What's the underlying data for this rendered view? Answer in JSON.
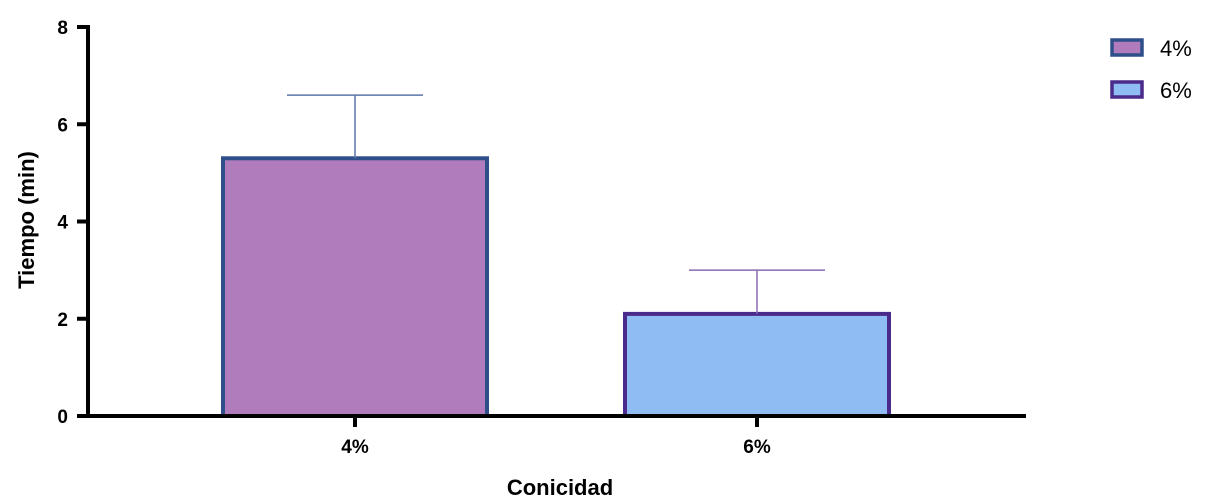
{
  "chart_data": {
    "type": "bar",
    "categories": [
      "4%",
      "6%"
    ],
    "values": [
      5.3,
      2.1
    ],
    "error_upper": [
      6.6,
      3.0
    ],
    "xlabel": "Conicidad",
    "ylabel": "Tiempo (min)",
    "ylim": [
      0,
      8
    ],
    "yticks": [
      "0",
      "2",
      "4",
      "6",
      "8"
    ],
    "grid": false,
    "legend_position": "top-right",
    "legend": [
      {
        "label": "4%",
        "fill": "#b07cbc",
        "stroke": "#2e4f8a"
      },
      {
        "label": "6%",
        "fill": "#8fbdf3",
        "stroke": "#4a2a8a"
      }
    ],
    "bar_fills": [
      "#b07cbc",
      "#8fbdf3"
    ],
    "bar_strokes": [
      "#2e4f8a",
      "#4a2a8a"
    ],
    "error_colors": [
      "#5b76a8",
      "#8a6ab0"
    ],
    "axis_color": "#000000"
  }
}
